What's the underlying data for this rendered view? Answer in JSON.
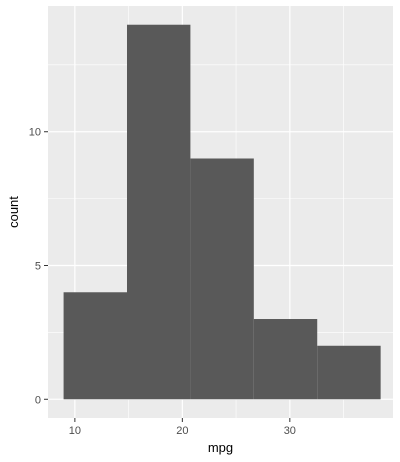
{
  "chart_data": {
    "type": "histogram",
    "title": "",
    "xlabel": "mpg",
    "ylabel": "count",
    "xlim": [
      7.5,
      39.6
    ],
    "ylim": [
      -0.7,
      14.7
    ],
    "x_ticks": [
      10,
      20,
      30
    ],
    "y_ticks": [
      0,
      5,
      10
    ],
    "x_minor": [
      15,
      25,
      35
    ],
    "y_minor": [
      2.5,
      7.5,
      12.5
    ],
    "bins": [
      {
        "x0": 8.95,
        "x1": 14.85,
        "count": 4
      },
      {
        "x0": 14.85,
        "x1": 20.75,
        "count": 14
      },
      {
        "x0": 20.75,
        "x1": 26.65,
        "count": 9
      },
      {
        "x0": 26.65,
        "x1": 32.55,
        "count": 3
      },
      {
        "x0": 32.55,
        "x1": 38.45,
        "count": 2
      }
    ],
    "bar_color": "#595959",
    "panel_color": "#ebebeb",
    "grid_color": "#ffffff",
    "grid": true,
    "legend": "none"
  }
}
